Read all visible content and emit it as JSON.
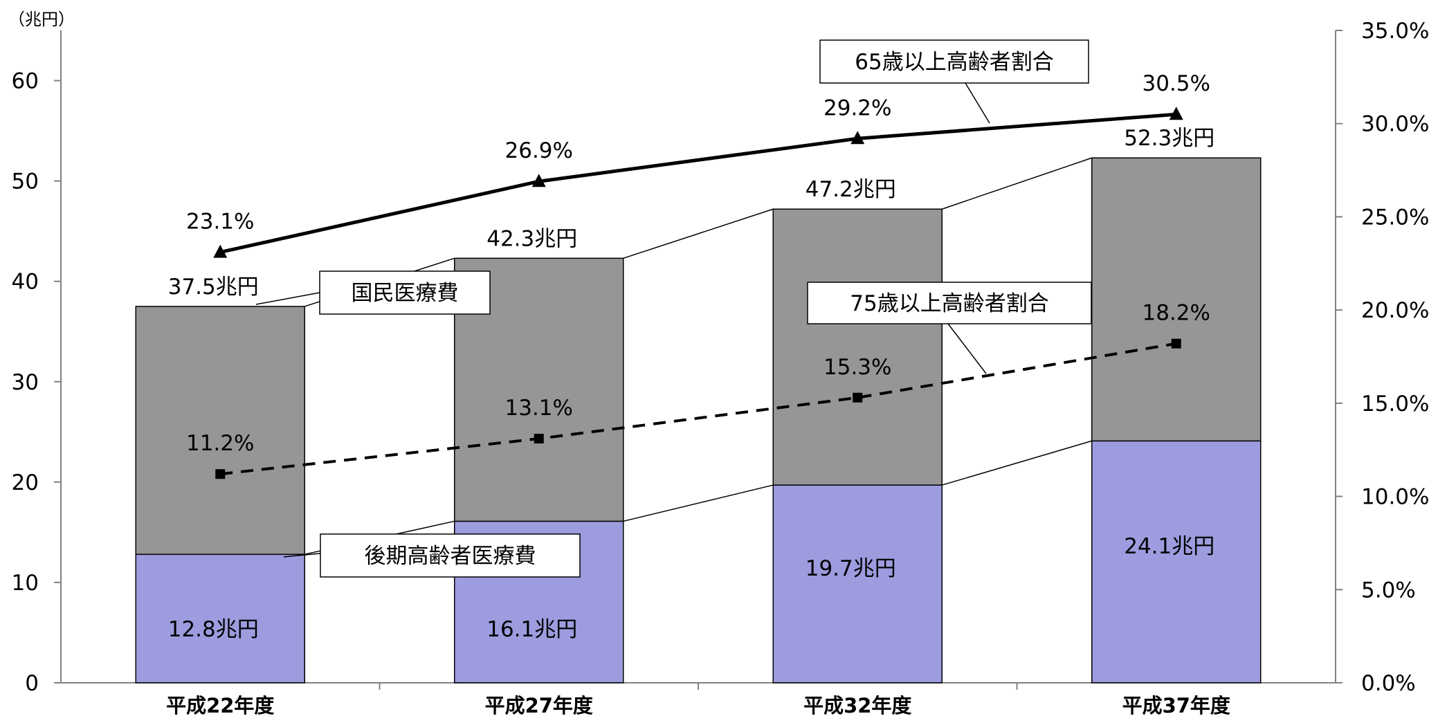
{
  "chart_data": {
    "type": "bar",
    "stacked": true,
    "categories": [
      "平成22年度",
      "平成27年度",
      "平成32年度",
      "平成37年度"
    ],
    "y_left": {
      "unit_label": "（兆円）",
      "ylim": [
        0,
        65
      ],
      "ticks": [
        0,
        10,
        20,
        30,
        40,
        50,
        60
      ]
    },
    "y_right": {
      "ylim": [
        0,
        35
      ],
      "ticks": [
        "0.0%",
        "5.0%",
        "10.0%",
        "15.0%",
        "20.0%",
        "25.0%",
        "30.0%",
        "35.0%"
      ]
    },
    "grid": false,
    "bar_series": [
      {
        "name": "後期高齢者医療費",
        "color": "#9d9cdf",
        "values": [
          12.8,
          16.1,
          19.7,
          24.1
        ],
        "labels": [
          "12.8兆円",
          "16.1兆円",
          "19.7兆円",
          "24.1兆円"
        ]
      },
      {
        "name": "国民医療費",
        "color": "#969696",
        "totals": [
          37.5,
          42.3,
          47.2,
          52.3
        ],
        "labels": [
          "37.5兆円",
          "42.3兆円",
          "47.2兆円",
          "52.3兆円"
        ]
      }
    ],
    "line_series": [
      {
        "name": "65歳以上高齢者割合",
        "axis": "right",
        "style": "solid",
        "marker": "triangle",
        "values": [
          23.1,
          26.9,
          29.2,
          30.5
        ],
        "labels": [
          "23.1%",
          "26.9%",
          "29.2%",
          "30.5%"
        ]
      },
      {
        "name": "75歳以上高齢者割合",
        "axis": "right",
        "style": "dashed",
        "marker": "square",
        "values": [
          11.2,
          13.1,
          15.3,
          18.2
        ],
        "labels": [
          "11.2%",
          "13.1%",
          "15.3%",
          "18.2%"
        ]
      }
    ]
  }
}
